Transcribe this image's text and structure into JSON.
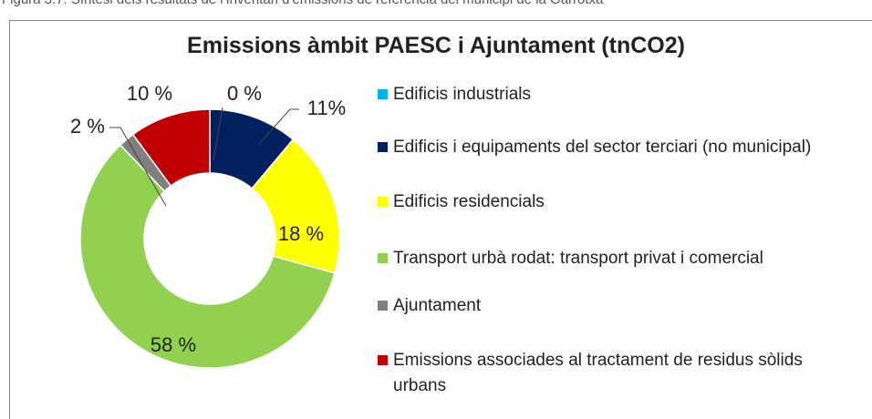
{
  "caption": "Figura 3.7: Síntesi dels resultats de l'Inventari d'emissions de referència del municipi de la Garrotxa",
  "chart_data": {
    "type": "donut",
    "title": "Emissions àmbit PAESC i Ajuntament (tnCO2)",
    "categories": [
      "Edificis industrials",
      "Edificis i equipaments del sector terciari (no municipal)",
      "Edificis residencials",
      "Transport urbà rodat: transport privat i comercial",
      "Ajuntament",
      "Emissions associades al tractament de residus sòlids urbans"
    ],
    "values": [
      0,
      11,
      18,
      58,
      2,
      10
    ],
    "value_labels": [
      "0 %",
      "11%",
      "18 %",
      "58 %",
      "2 %",
      "10 %"
    ],
    "colors": [
      "#00b0f0",
      "#002060",
      "#ffff00",
      "#92d050",
      "#7f7f7f",
      "#c00000"
    ],
    "legend": "right"
  }
}
